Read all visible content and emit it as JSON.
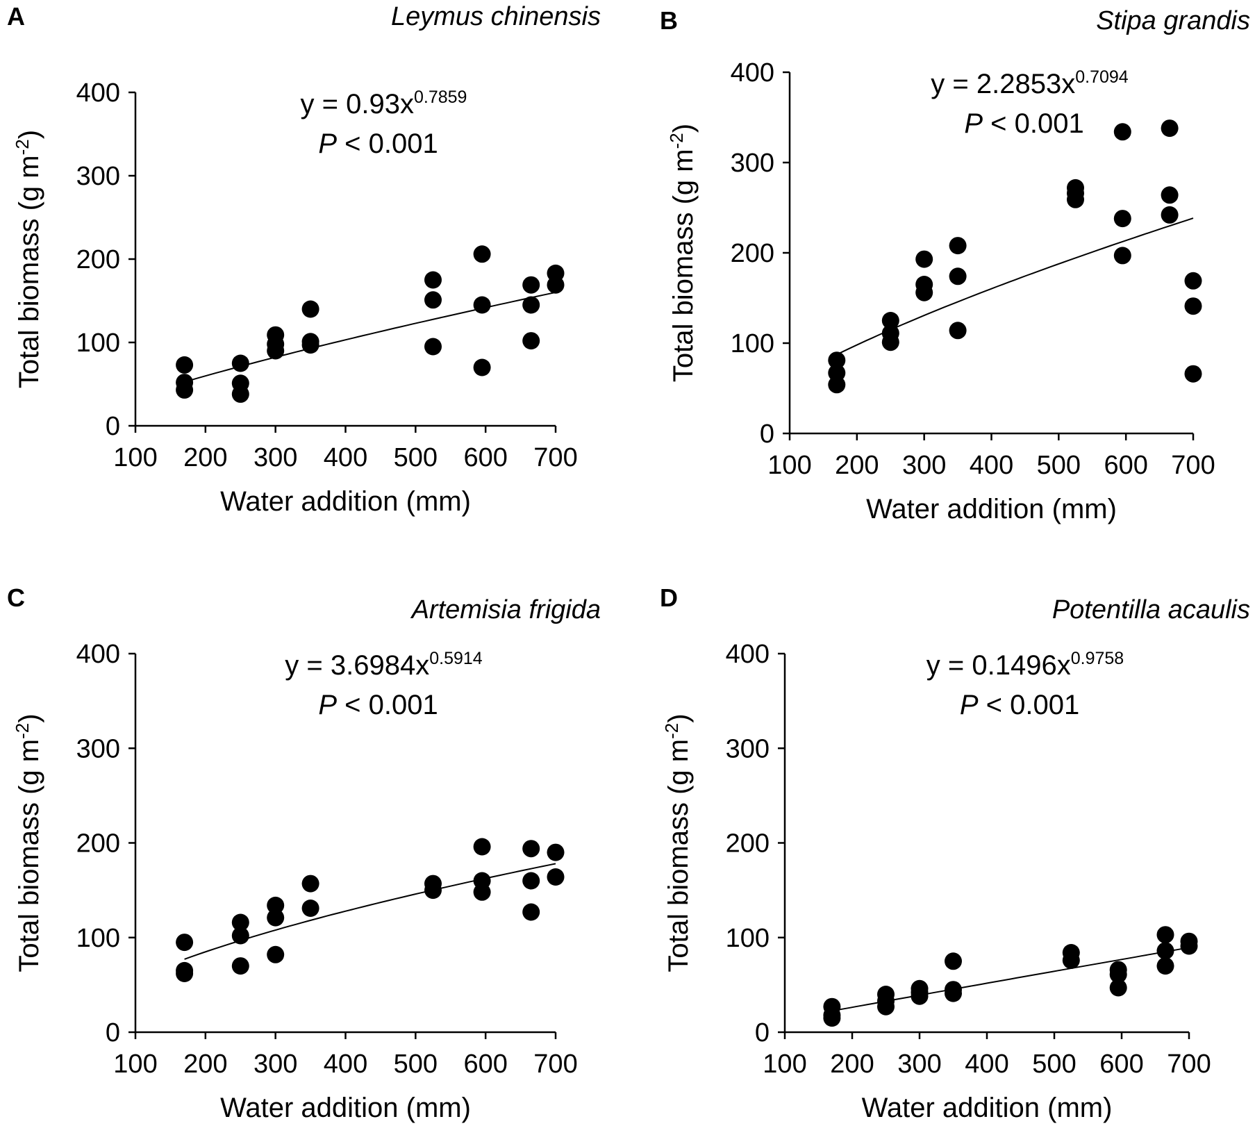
{
  "figure": {
    "x_label": "Water addition (mm)",
    "y_label": "Total biomass (g m",
    "y_label_sup": "-2",
    "y_label_end": ")",
    "x_ticks": [
      100,
      200,
      300,
      400,
      500,
      600,
      700
    ],
    "y_ticks": [
      0,
      100,
      200,
      300,
      400
    ],
    "equation_prefix": "y = ",
    "p_symbol": "P",
    "p_value_text": " < 0.001",
    "colors": {
      "points": "#000000",
      "line": "#000000",
      "axis": "#000000"
    }
  },
  "chart_data": [
    {
      "type": "scatter",
      "panel": "A",
      "title": "Leymus chinensis",
      "xlabel": "Water addition (mm)",
      "ylabel": "Total biomass (g m-2)",
      "xlim": [
        100,
        700
      ],
      "ylim": [
        0,
        400
      ],
      "fit": {
        "model": "power",
        "coef": 0.93,
        "exponent": 0.7859,
        "coef_text": "0.93",
        "exp_text": "0.7859",
        "p_text": "< 0.001",
        "x_range": [
          170,
          700
        ]
      },
      "points": [
        {
          "x": 170,
          "y": 73
        },
        {
          "x": 170,
          "y": 52
        },
        {
          "x": 170,
          "y": 43
        },
        {
          "x": 250,
          "y": 75
        },
        {
          "x": 250,
          "y": 51
        },
        {
          "x": 250,
          "y": 38
        },
        {
          "x": 300,
          "y": 109
        },
        {
          "x": 300,
          "y": 98
        },
        {
          "x": 300,
          "y": 90
        },
        {
          "x": 350,
          "y": 140
        },
        {
          "x": 350,
          "y": 101
        },
        {
          "x": 350,
          "y": 97
        },
        {
          "x": 525,
          "y": 175
        },
        {
          "x": 525,
          "y": 151
        },
        {
          "x": 525,
          "y": 95
        },
        {
          "x": 595,
          "y": 206
        },
        {
          "x": 595,
          "y": 145
        },
        {
          "x": 595,
          "y": 70
        },
        {
          "x": 665,
          "y": 169
        },
        {
          "x": 665,
          "y": 145
        },
        {
          "x": 665,
          "y": 102
        },
        {
          "x": 700,
          "y": 183
        },
        {
          "x": 700,
          "y": 169
        }
      ]
    },
    {
      "type": "scatter",
      "panel": "B",
      "title": "Stipa grandis",
      "xlabel": "Water addition (mm)",
      "ylabel": "Total biomass (g m-2)",
      "xlim": [
        100,
        700
      ],
      "ylim": [
        0,
        400
      ],
      "fit": {
        "model": "power",
        "coef": 2.2853,
        "exponent": 0.7094,
        "coef_text": "2.2853",
        "exp_text": "0.7094",
        "p_text": "< 0.001",
        "x_range": [
          170,
          700
        ]
      },
      "points": [
        {
          "x": 170,
          "y": 81
        },
        {
          "x": 170,
          "y": 67
        },
        {
          "x": 170,
          "y": 54
        },
        {
          "x": 250,
          "y": 125
        },
        {
          "x": 250,
          "y": 111
        },
        {
          "x": 250,
          "y": 101
        },
        {
          "x": 300,
          "y": 193
        },
        {
          "x": 300,
          "y": 165
        },
        {
          "x": 300,
          "y": 156
        },
        {
          "x": 350,
          "y": 208
        },
        {
          "x": 350,
          "y": 174
        },
        {
          "x": 350,
          "y": 114
        },
        {
          "x": 525,
          "y": 272
        },
        {
          "x": 525,
          "y": 266
        },
        {
          "x": 525,
          "y": 259
        },
        {
          "x": 595,
          "y": 334
        },
        {
          "x": 595,
          "y": 238
        },
        {
          "x": 595,
          "y": 197
        },
        {
          "x": 665,
          "y": 338
        },
        {
          "x": 665,
          "y": 264
        },
        {
          "x": 665,
          "y": 242
        },
        {
          "x": 700,
          "y": 169
        },
        {
          "x": 700,
          "y": 141
        },
        {
          "x": 700,
          "y": 66
        }
      ]
    },
    {
      "type": "scatter",
      "panel": "C",
      "title": "Artemisia frigida",
      "xlabel": "Water addition (mm)",
      "ylabel": "Total biomass (g m-2)",
      "xlim": [
        100,
        700
      ],
      "ylim": [
        0,
        400
      ],
      "fit": {
        "model": "power",
        "coef": 3.6984,
        "exponent": 0.5914,
        "coef_text": "3.6984",
        "exp_text": "0.5914",
        "p_text": "< 0.001",
        "x_range": [
          170,
          700
        ]
      },
      "points": [
        {
          "x": 170,
          "y": 95
        },
        {
          "x": 170,
          "y": 65
        },
        {
          "x": 170,
          "y": 62
        },
        {
          "x": 250,
          "y": 116
        },
        {
          "x": 250,
          "y": 102
        },
        {
          "x": 250,
          "y": 70
        },
        {
          "x": 300,
          "y": 134
        },
        {
          "x": 300,
          "y": 121
        },
        {
          "x": 300,
          "y": 82
        },
        {
          "x": 350,
          "y": 157
        },
        {
          "x": 350,
          "y": 131
        },
        {
          "x": 525,
          "y": 157
        },
        {
          "x": 525,
          "y": 150
        },
        {
          "x": 595,
          "y": 196
        },
        {
          "x": 595,
          "y": 160
        },
        {
          "x": 595,
          "y": 148
        },
        {
          "x": 665,
          "y": 194
        },
        {
          "x": 665,
          "y": 160
        },
        {
          "x": 665,
          "y": 127
        },
        {
          "x": 700,
          "y": 190
        },
        {
          "x": 700,
          "y": 164
        }
      ]
    },
    {
      "type": "scatter",
      "panel": "D",
      "title": "Potentilla acaulis",
      "xlabel": "Water addition (mm)",
      "ylabel": "Total biomass (g m-2)",
      "xlim": [
        100,
        700
      ],
      "ylim": [
        0,
        400
      ],
      "fit": {
        "model": "power",
        "coef": 0.1496,
        "exponent": 0.9758,
        "coef_text": "0.1496",
        "exp_text": "0.9758",
        "p_text": "< 0.001",
        "x_range": [
          170,
          700
        ]
      },
      "points": [
        {
          "x": 170,
          "y": 27
        },
        {
          "x": 170,
          "y": 18
        },
        {
          "x": 170,
          "y": 15
        },
        {
          "x": 250,
          "y": 40
        },
        {
          "x": 250,
          "y": 33
        },
        {
          "x": 250,
          "y": 27
        },
        {
          "x": 300,
          "y": 46
        },
        {
          "x": 300,
          "y": 42
        },
        {
          "x": 300,
          "y": 38
        },
        {
          "x": 350,
          "y": 75
        },
        {
          "x": 350,
          "y": 45
        },
        {
          "x": 350,
          "y": 41
        },
        {
          "x": 525,
          "y": 84
        },
        {
          "x": 525,
          "y": 76
        },
        {
          "x": 595,
          "y": 66
        },
        {
          "x": 595,
          "y": 61
        },
        {
          "x": 595,
          "y": 47
        },
        {
          "x": 665,
          "y": 103
        },
        {
          "x": 665,
          "y": 86
        },
        {
          "x": 665,
          "y": 70
        },
        {
          "x": 700,
          "y": 96
        },
        {
          "x": 700,
          "y": 91
        }
      ]
    }
  ]
}
